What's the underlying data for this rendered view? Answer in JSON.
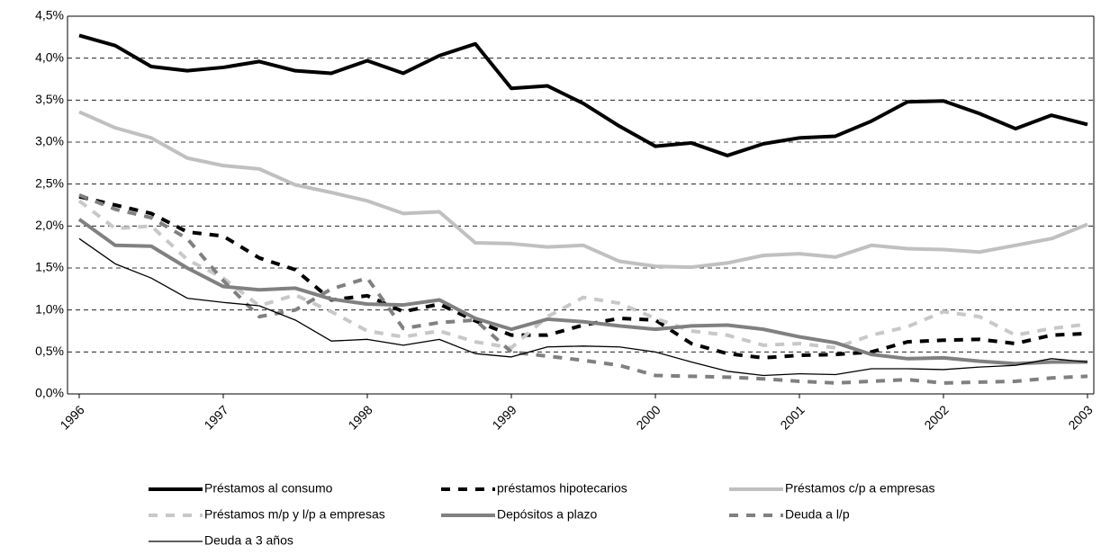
{
  "chart_data": {
    "type": "line",
    "categories": [
      "1996",
      null,
      null,
      null,
      "1997",
      null,
      null,
      null,
      "1998",
      null,
      null,
      null,
      "1999",
      null,
      null,
      null,
      "2000",
      null,
      null,
      null,
      "2001",
      null,
      null,
      null,
      "2002",
      null,
      null,
      null,
      "2003"
    ],
    "series": [
      {
        "name": "Préstamos al consumo",
        "color": "#000000",
        "dashed": false,
        "linewidth": 4,
        "values": [
          4.27,
          4.15,
          3.9,
          3.85,
          3.89,
          3.96,
          3.85,
          3.82,
          3.97,
          3.82,
          4.03,
          4.17,
          3.64,
          3.67,
          3.46,
          3.19,
          2.95,
          2.99,
          2.84,
          2.98,
          3.05,
          3.07,
          3.25,
          3.48,
          3.49,
          3.34,
          3.16,
          3.32,
          3.21
        ]
      },
      {
        "name": "préstamos hipotecarios",
        "color": "#000000",
        "dashed": true,
        "linewidth": 4,
        "values": [
          2.35,
          2.25,
          2.15,
          1.93,
          1.88,
          1.62,
          1.48,
          1.12,
          1.17,
          0.98,
          1.07,
          0.87,
          0.7,
          0.7,
          0.82,
          0.9,
          0.88,
          0.6,
          0.48,
          0.43,
          0.46,
          0.47,
          0.5,
          0.62,
          0.64,
          0.65,
          0.6,
          0.7,
          0.72
        ]
      },
      {
        "name": "Préstamos c/p a empresas",
        "color": "#c0c0c0",
        "dashed": false,
        "linewidth": 4,
        "values": [
          3.36,
          3.17,
          3.05,
          2.81,
          2.72,
          2.68,
          2.49,
          2.4,
          2.3,
          2.15,
          2.17,
          1.8,
          1.79,
          1.75,
          1.77,
          1.58,
          1.52,
          1.51,
          1.56,
          1.65,
          1.67,
          1.63,
          1.77,
          1.73,
          1.72,
          1.69,
          1.77,
          1.85,
          2.02
        ]
      },
      {
        "name": "Préstamos m/p y l/p a empresas",
        "color": "#c8c8c8",
        "dashed": true,
        "linewidth": 4,
        "values": [
          2.3,
          1.97,
          2.0,
          1.6,
          1.38,
          1.05,
          1.18,
          0.98,
          0.75,
          0.68,
          0.75,
          0.62,
          0.55,
          0.92,
          1.15,
          1.08,
          0.9,
          0.75,
          0.7,
          0.58,
          0.6,
          0.55,
          0.7,
          0.8,
          0.98,
          0.92,
          0.7,
          0.78,
          0.83
        ]
      },
      {
        "name": "Depósitos a plazo",
        "color": "#808080",
        "dashed": false,
        "linewidth": 4,
        "values": [
          2.08,
          1.77,
          1.76,
          1.5,
          1.28,
          1.24,
          1.26,
          1.13,
          1.07,
          1.06,
          1.12,
          0.9,
          0.77,
          0.89,
          0.86,
          0.81,
          0.77,
          0.81,
          0.82,
          0.77,
          0.68,
          0.61,
          0.47,
          0.42,
          0.43,
          0.39,
          0.36,
          0.38,
          0.38
        ]
      },
      {
        "name": "Deuda a l/p",
        "color": "#808080",
        "dashed": true,
        "linewidth": 4,
        "values": [
          2.37,
          2.2,
          2.1,
          1.85,
          1.35,
          0.92,
          1.0,
          1.25,
          1.38,
          0.78,
          0.85,
          0.88,
          0.5,
          0.45,
          0.4,
          0.34,
          0.22,
          0.21,
          0.2,
          0.18,
          0.15,
          0.13,
          0.15,
          0.17,
          0.13,
          0.14,
          0.15,
          0.19,
          0.21
        ]
      },
      {
        "name": "Deuda a 3 años",
        "color": "#000000",
        "dashed": false,
        "linewidth": 1.3,
        "values": [
          1.85,
          1.55,
          1.38,
          1.14,
          1.09,
          1.05,
          0.88,
          0.63,
          0.65,
          0.58,
          0.65,
          0.48,
          0.44,
          0.56,
          0.57,
          0.56,
          0.5,
          0.38,
          0.27,
          0.22,
          0.24,
          0.23,
          0.3,
          0.3,
          0.29,
          0.32,
          0.34,
          0.42,
          0.38
        ]
      }
    ],
    "ylim": [
      0,
      4.5
    ],
    "yticks": [
      {
        "value": 0,
        "label": "0,0%"
      },
      {
        "value": 0.5,
        "label": "0,5%"
      },
      {
        "value": 1,
        "label": "1,0%"
      },
      {
        "value": 1.5,
        "label": "1,5%"
      },
      {
        "value": 2,
        "label": "2,0%"
      },
      {
        "value": 2.5,
        "label": "2,5%"
      },
      {
        "value": 3,
        "label": "3,0%"
      },
      {
        "value": 3.5,
        "label": "3,5%"
      },
      {
        "value": 4,
        "label": "4,0%"
      },
      {
        "value": 4.5,
        "label": "4,5%"
      }
    ],
    "grid": true
  }
}
